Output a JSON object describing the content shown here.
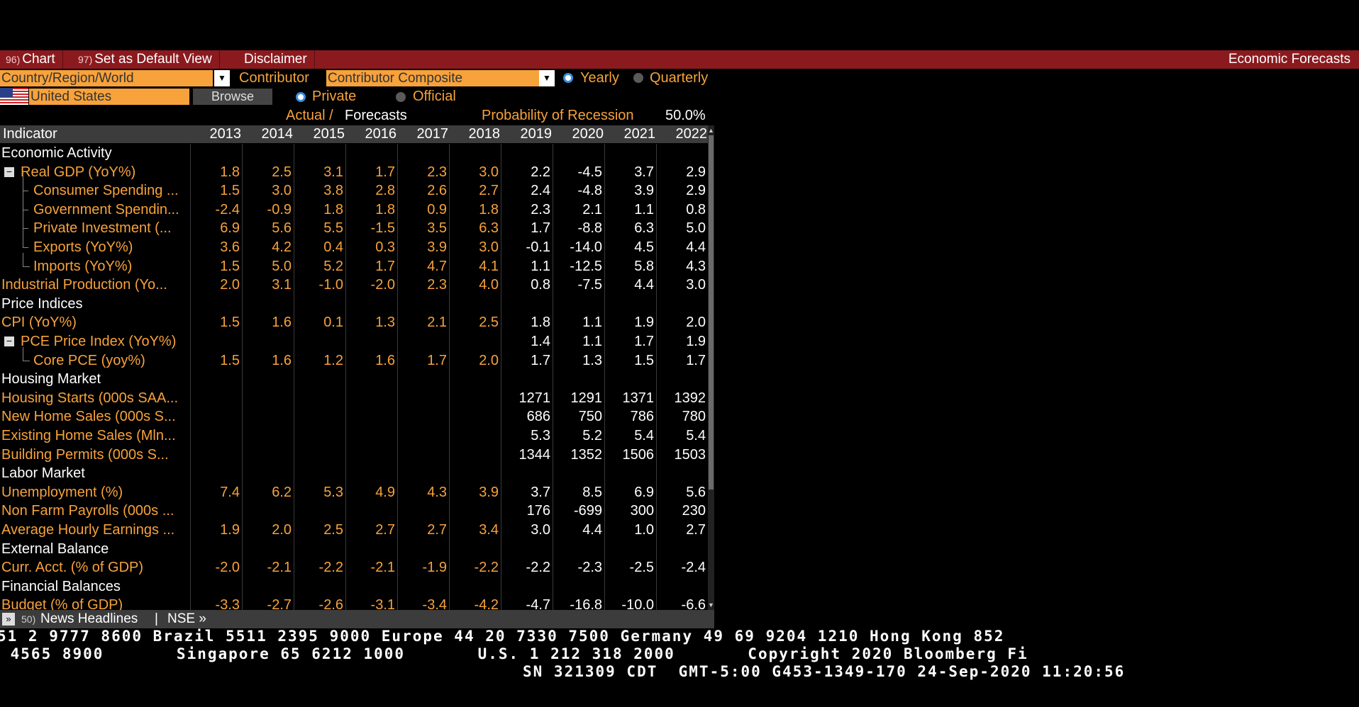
{
  "toolbar": {
    "items": [
      {
        "num": "96)",
        "label": "Chart"
      },
      {
        "num": "97)",
        "label": "Set as Default View"
      },
      {
        "num": "",
        "label": "Disclaimer"
      }
    ],
    "title": "Economic Forecasts"
  },
  "controls": {
    "region_dropdown": "Country/Region/World",
    "contributor_label": "Contributor",
    "contributor_dropdown": "Contributor Composite",
    "yearly_label": "Yearly",
    "quarterly_label": "Quarterly",
    "country_value": "United States",
    "browse_label": "Browse",
    "private_label": "Private",
    "official_label": "Official",
    "actual_label": "Actual /",
    "forecasts_label": "Forecasts",
    "recession_label": "Probability of Recession",
    "recession_value": "50.0%"
  },
  "table": {
    "header_label": "Indicator",
    "years": [
      "2013",
      "2014",
      "2015",
      "2016",
      "2017",
      "2018",
      "2019",
      "2020",
      "2021",
      "2022"
    ],
    "rows": [
      {
        "label": "Economic Activity",
        "type": "section",
        "values": []
      },
      {
        "label": "Real GDP (YoY%)",
        "type": "parent",
        "values": [
          "1.8",
          "2.5",
          "3.1",
          "1.7",
          "2.3",
          "3.0",
          "2.2",
          "-4.5",
          "3.7",
          "2.9"
        ]
      },
      {
        "label": "Consumer Spending ...",
        "type": "child",
        "values": [
          "1.5",
          "3.0",
          "3.8",
          "2.8",
          "2.6",
          "2.7",
          "2.4",
          "-4.8",
          "3.9",
          "2.9"
        ]
      },
      {
        "label": "Government Spendin...",
        "type": "child",
        "values": [
          "-2.4",
          "-0.9",
          "1.8",
          "1.8",
          "0.9",
          "1.8",
          "2.3",
          "2.1",
          "1.1",
          "0.8"
        ]
      },
      {
        "label": "Private Investment (...",
        "type": "child",
        "values": [
          "6.9",
          "5.6",
          "5.5",
          "-1.5",
          "3.5",
          "6.3",
          "1.7",
          "-8.8",
          "6.3",
          "5.0"
        ]
      },
      {
        "label": "Exports (YoY%)",
        "type": "child",
        "values": [
          "3.6",
          "4.2",
          "0.4",
          "0.3",
          "3.9",
          "3.0",
          "-0.1",
          "-14.0",
          "4.5",
          "4.4"
        ]
      },
      {
        "label": "Imports (YoY%)",
        "type": "child-last",
        "values": [
          "1.5",
          "5.0",
          "5.2",
          "1.7",
          "4.7",
          "4.1",
          "1.1",
          "-12.5",
          "5.8",
          "4.3"
        ]
      },
      {
        "label": "Industrial Production (Yo...",
        "type": "item",
        "values": [
          "2.0",
          "3.1",
          "-1.0",
          "-2.0",
          "2.3",
          "4.0",
          "0.8",
          "-7.5",
          "4.4",
          "3.0"
        ]
      },
      {
        "label": "Price Indices",
        "type": "section",
        "values": []
      },
      {
        "label": "CPI (YoY%)",
        "type": "item",
        "values": [
          "1.5",
          "1.6",
          "0.1",
          "1.3",
          "2.1",
          "2.5",
          "1.8",
          "1.1",
          "1.9",
          "2.0"
        ]
      },
      {
        "label": "PCE Price Index (YoY%)",
        "type": "parent",
        "values": [
          "",
          "",
          "",
          "",
          "",
          "",
          "1.4",
          "1.1",
          "1.7",
          "1.9"
        ]
      },
      {
        "label": "Core PCE (yoy%)",
        "type": "child-last",
        "values": [
          "1.5",
          "1.6",
          "1.2",
          "1.6",
          "1.7",
          "2.0",
          "1.7",
          "1.3",
          "1.5",
          "1.7"
        ]
      },
      {
        "label": "Housing Market",
        "type": "section",
        "values": []
      },
      {
        "label": "Housing Starts (000s SAA...",
        "type": "item",
        "values": [
          "",
          "",
          "",
          "",
          "",
          "",
          "1271",
          "1291",
          "1371",
          "1392"
        ]
      },
      {
        "label": "New Home Sales (000s S...",
        "type": "item",
        "values": [
          "",
          "",
          "",
          "",
          "",
          "",
          "686",
          "750",
          "786",
          "780"
        ]
      },
      {
        "label": "Existing Home Sales (Mln...",
        "type": "item",
        "values": [
          "",
          "",
          "",
          "",
          "",
          "",
          "5.3",
          "5.2",
          "5.4",
          "5.4"
        ]
      },
      {
        "label": "Building Permits (000s S...",
        "type": "item",
        "values": [
          "",
          "",
          "",
          "",
          "",
          "",
          "1344",
          "1352",
          "1506",
          "1503"
        ]
      },
      {
        "label": "Labor Market",
        "type": "section",
        "values": []
      },
      {
        "label": "Unemployment (%)",
        "type": "item",
        "values": [
          "7.4",
          "6.2",
          "5.3",
          "4.9",
          "4.3",
          "3.9",
          "3.7",
          "8.5",
          "6.9",
          "5.6"
        ]
      },
      {
        "label": "Non Farm Payrolls (000s ...",
        "type": "item",
        "values": [
          "",
          "",
          "",
          "",
          "",
          "",
          "176",
          "-699",
          "300",
          "230"
        ]
      },
      {
        "label": "Average Hourly Earnings ...",
        "type": "item",
        "values": [
          "1.9",
          "2.0",
          "2.5",
          "2.7",
          "2.7",
          "3.4",
          "3.0",
          "4.4",
          "1.0",
          "2.7"
        ]
      },
      {
        "label": "External Balance",
        "type": "section",
        "values": []
      },
      {
        "label": "Curr. Acct. (% of GDP)",
        "type": "item",
        "values": [
          "-2.0",
          "-2.1",
          "-2.2",
          "-2.1",
          "-1.9",
          "-2.2",
          "-2.2",
          "-2.3",
          "-2.5",
          "-2.4"
        ]
      },
      {
        "label": "Financial Balances",
        "type": "section",
        "values": []
      },
      {
        "label": "Budget (% of GDP)",
        "type": "item",
        "values": [
          "-3.3",
          "-2.7",
          "-2.6",
          "-3.1",
          "-3.4",
          "-4.2",
          "-4.7",
          "-16.8",
          "-10.0",
          "-6.6"
        ]
      }
    ]
  },
  "newsbar": {
    "num": "50)",
    "label": "News Headlines",
    "sep": "|",
    "link": "NSE »"
  },
  "footer": {
    "line1": "51 2 9777 8600 Brazil 5511 2395 9000 Europe 44 20 7330 7500 Germany 49 69 9204 1210 Hong Kong 852",
    "line2": " 4565 8900       Singapore 65 6212 1000       U.S. 1 212 318 2000       Copyright 2020 Bloomberg Fi",
    "line3": "SN 321309 CDT  GMT-5:00 G453-1349-170 24-Sep-2020 11:20:56"
  },
  "colors": {
    "toolbar_bg": "#8b1a1f",
    "orange": "#f7a23b",
    "radio_on": "#3b8fe0"
  }
}
